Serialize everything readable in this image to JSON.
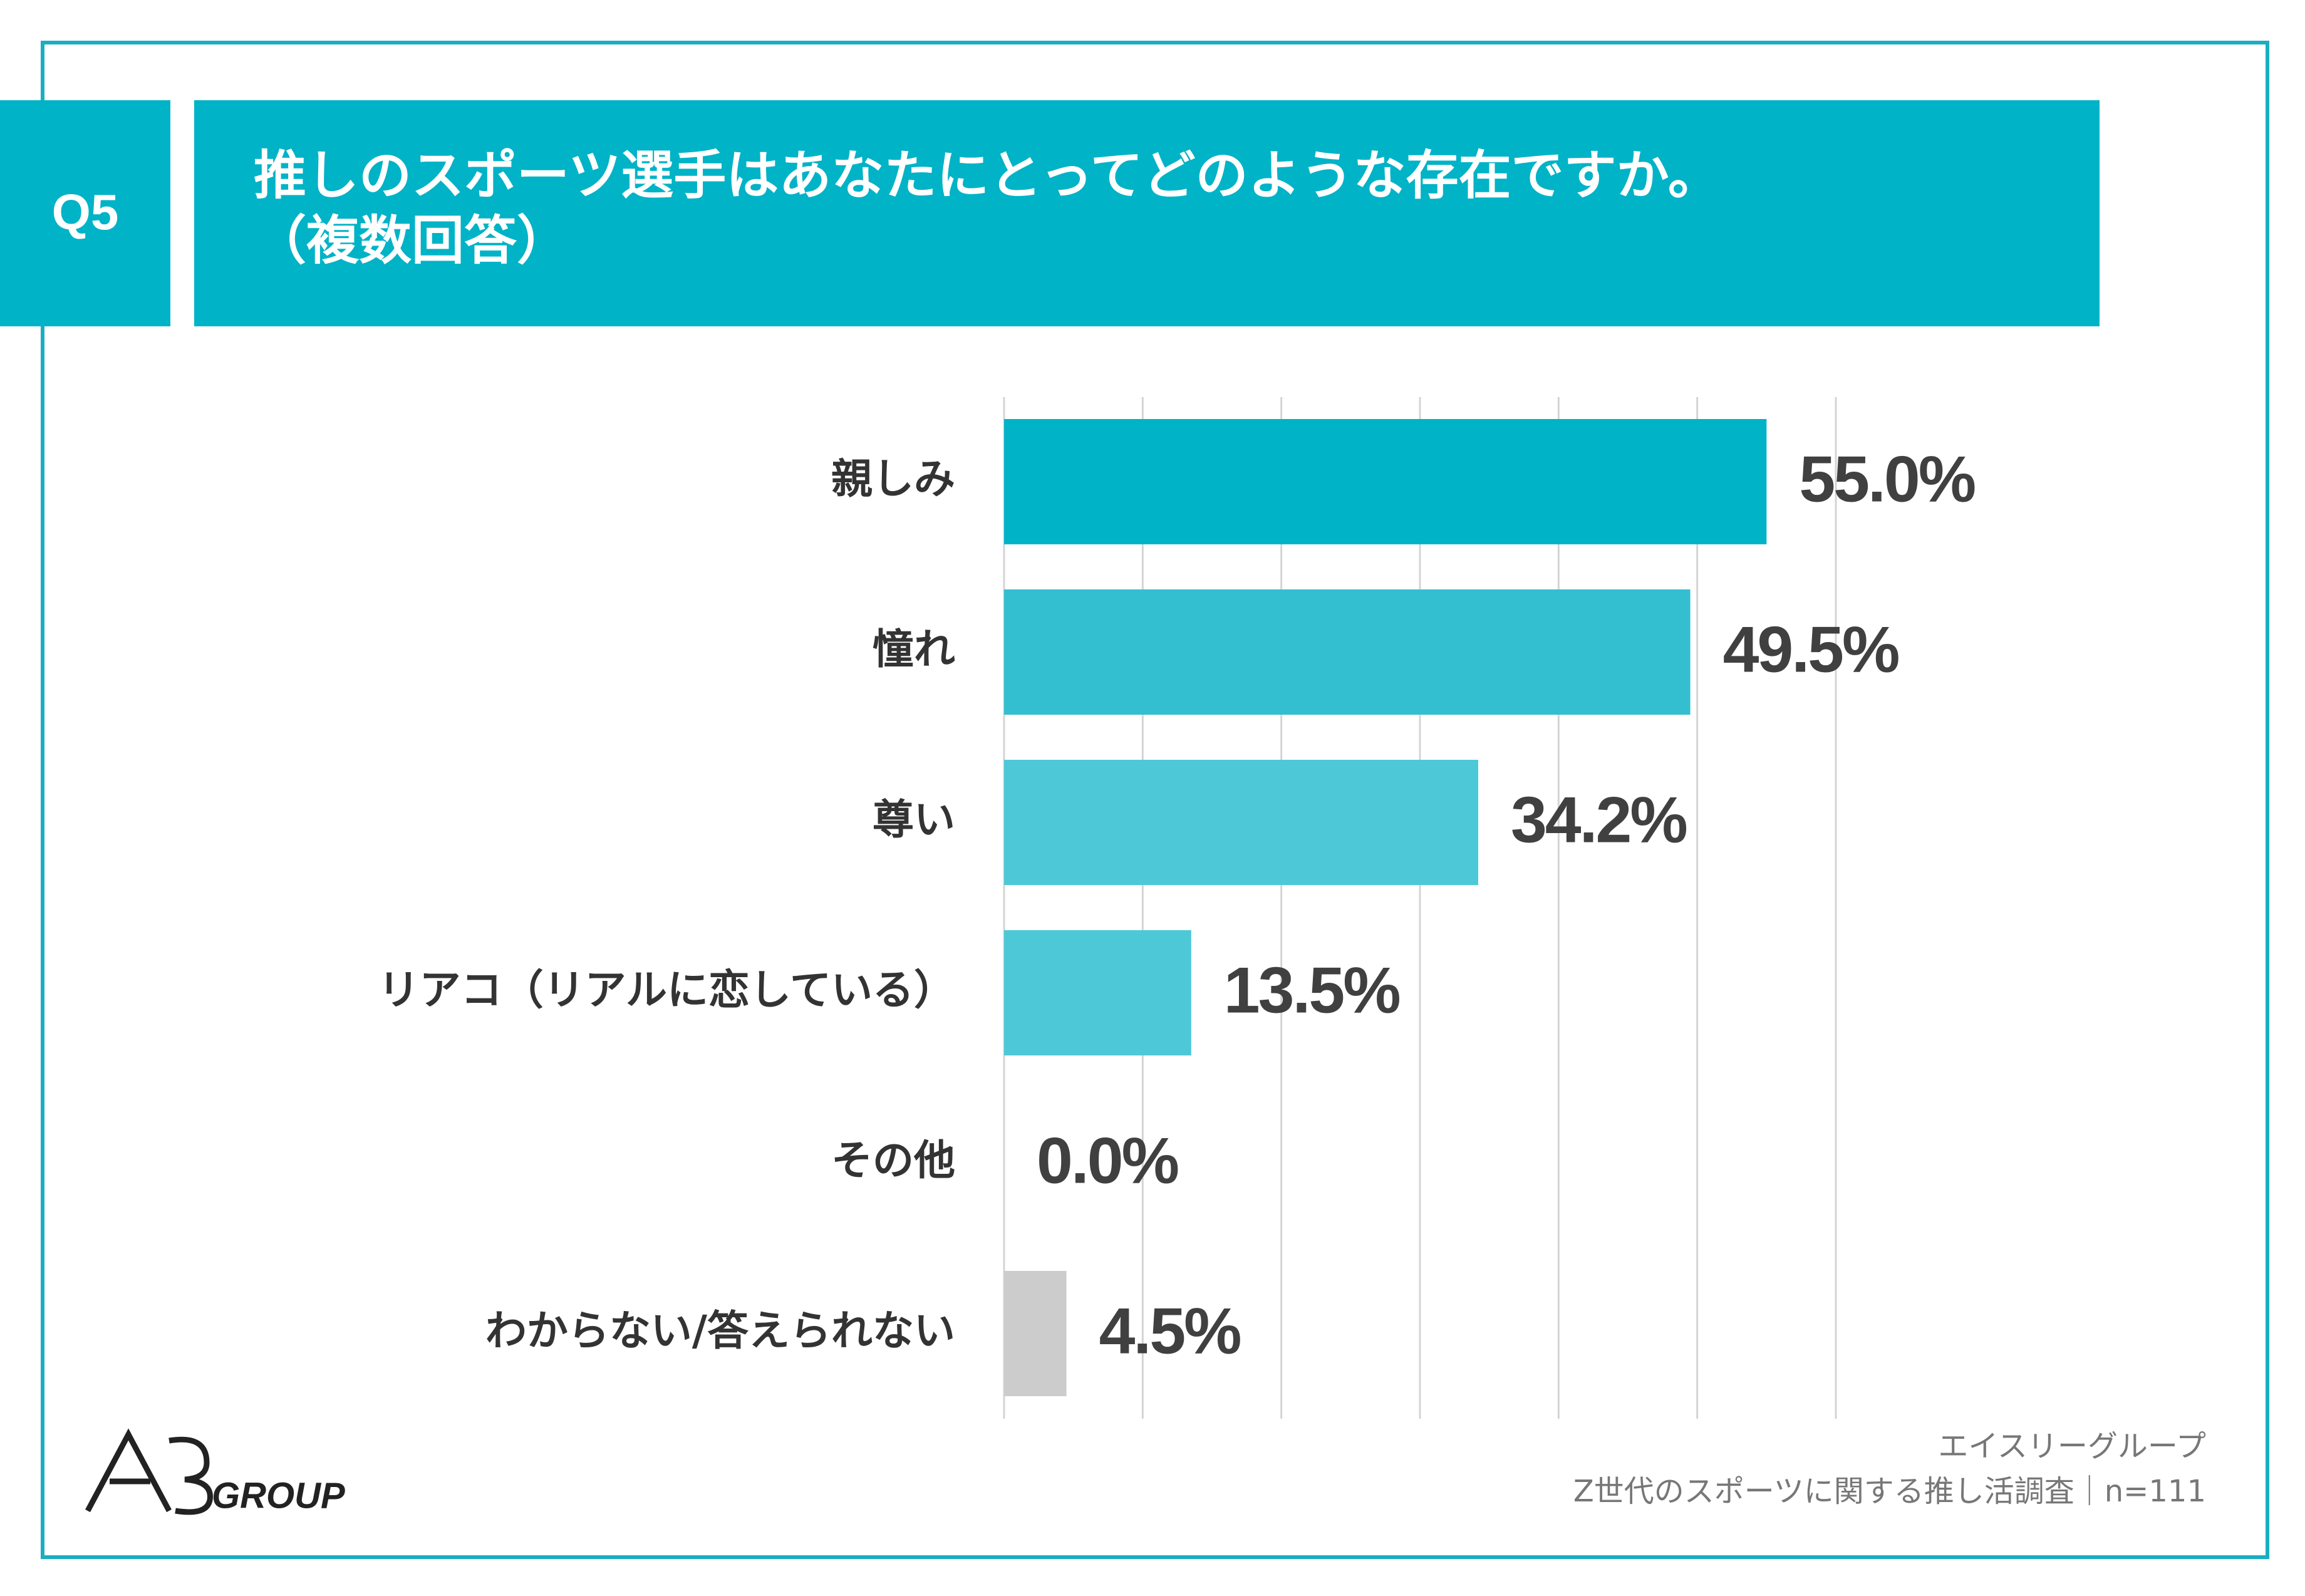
{
  "badge": "Q5",
  "chart_data": {
    "type": "bar",
    "orientation": "horizontal",
    "title": "推しのスポーツ選手はあなたにとってどのような存在ですか。",
    "subtitle": "（複数回答）",
    "categories": [
      "親しみ",
      "憧れ",
      "尊い",
      "リアコ（リアルに恋している）",
      "その他",
      "わからない/答えられない"
    ],
    "values": [
      55.0,
      49.5,
      34.2,
      13.5,
      0.0,
      4.5
    ],
    "value_labels": [
      "55.0%",
      "49.5%",
      "34.2%",
      "13.5%",
      "0.0%",
      "4.5%"
    ],
    "colors": [
      "#00b3c7",
      "#33bfd0",
      "#4dc8d7",
      "#4dc8d7",
      "#4dc8d7",
      "#cccccc"
    ],
    "xlim": [
      0,
      60
    ],
    "xticks": [
      0,
      10,
      20,
      30,
      40,
      50,
      60
    ],
    "grid": true
  },
  "logo": "GROUP",
  "source": [
    "エイスリーグループ",
    "Z世代のスポーツに関する推し活調査｜n=111"
  ]
}
